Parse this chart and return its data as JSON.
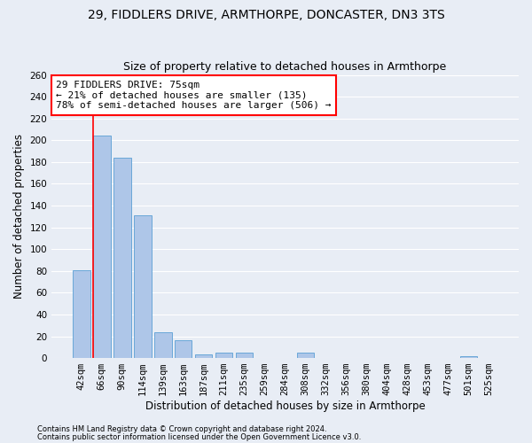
{
  "title1": "29, FIDDLERS DRIVE, ARMTHORPE, DONCASTER, DN3 3TS",
  "title2": "Size of property relative to detached houses in Armthorpe",
  "xlabel": "Distribution of detached houses by size in Armthorpe",
  "ylabel": "Number of detached properties",
  "footnote1": "Contains HM Land Registry data © Crown copyright and database right 2024.",
  "footnote2": "Contains public sector information licensed under the Open Government Licence v3.0.",
  "categories": [
    "42sqm",
    "66sqm",
    "90sqm",
    "114sqm",
    "139sqm",
    "163sqm",
    "187sqm",
    "211sqm",
    "235sqm",
    "259sqm",
    "284sqm",
    "308sqm",
    "332sqm",
    "356sqm",
    "380sqm",
    "404sqm",
    "428sqm",
    "453sqm",
    "477sqm",
    "501sqm",
    "525sqm"
  ],
  "values": [
    81,
    204,
    184,
    131,
    24,
    16,
    3,
    5,
    5,
    0,
    0,
    5,
    0,
    0,
    0,
    0,
    0,
    0,
    0,
    2,
    0
  ],
  "bar_color": "#aec6e8",
  "bar_edge_color": "#5a9fd4",
  "vline_color": "red",
  "annotation_text": "29 FIDDLERS DRIVE: 75sqm\n← 21% of detached houses are smaller (135)\n78% of semi-detached houses are larger (506) →",
  "annotation_box_color": "white",
  "annotation_box_edge": "red",
  "ylim": [
    0,
    260
  ],
  "yticks": [
    0,
    20,
    40,
    60,
    80,
    100,
    120,
    140,
    160,
    180,
    200,
    220,
    240,
    260
  ],
  "bg_color": "#e8edf5",
  "grid_color": "white",
  "title1_fontsize": 10,
  "title2_fontsize": 9,
  "axis_fontsize": 8.5,
  "tick_fontsize": 7.5,
  "annotation_fontsize": 8,
  "footnote_fontsize": 6
}
